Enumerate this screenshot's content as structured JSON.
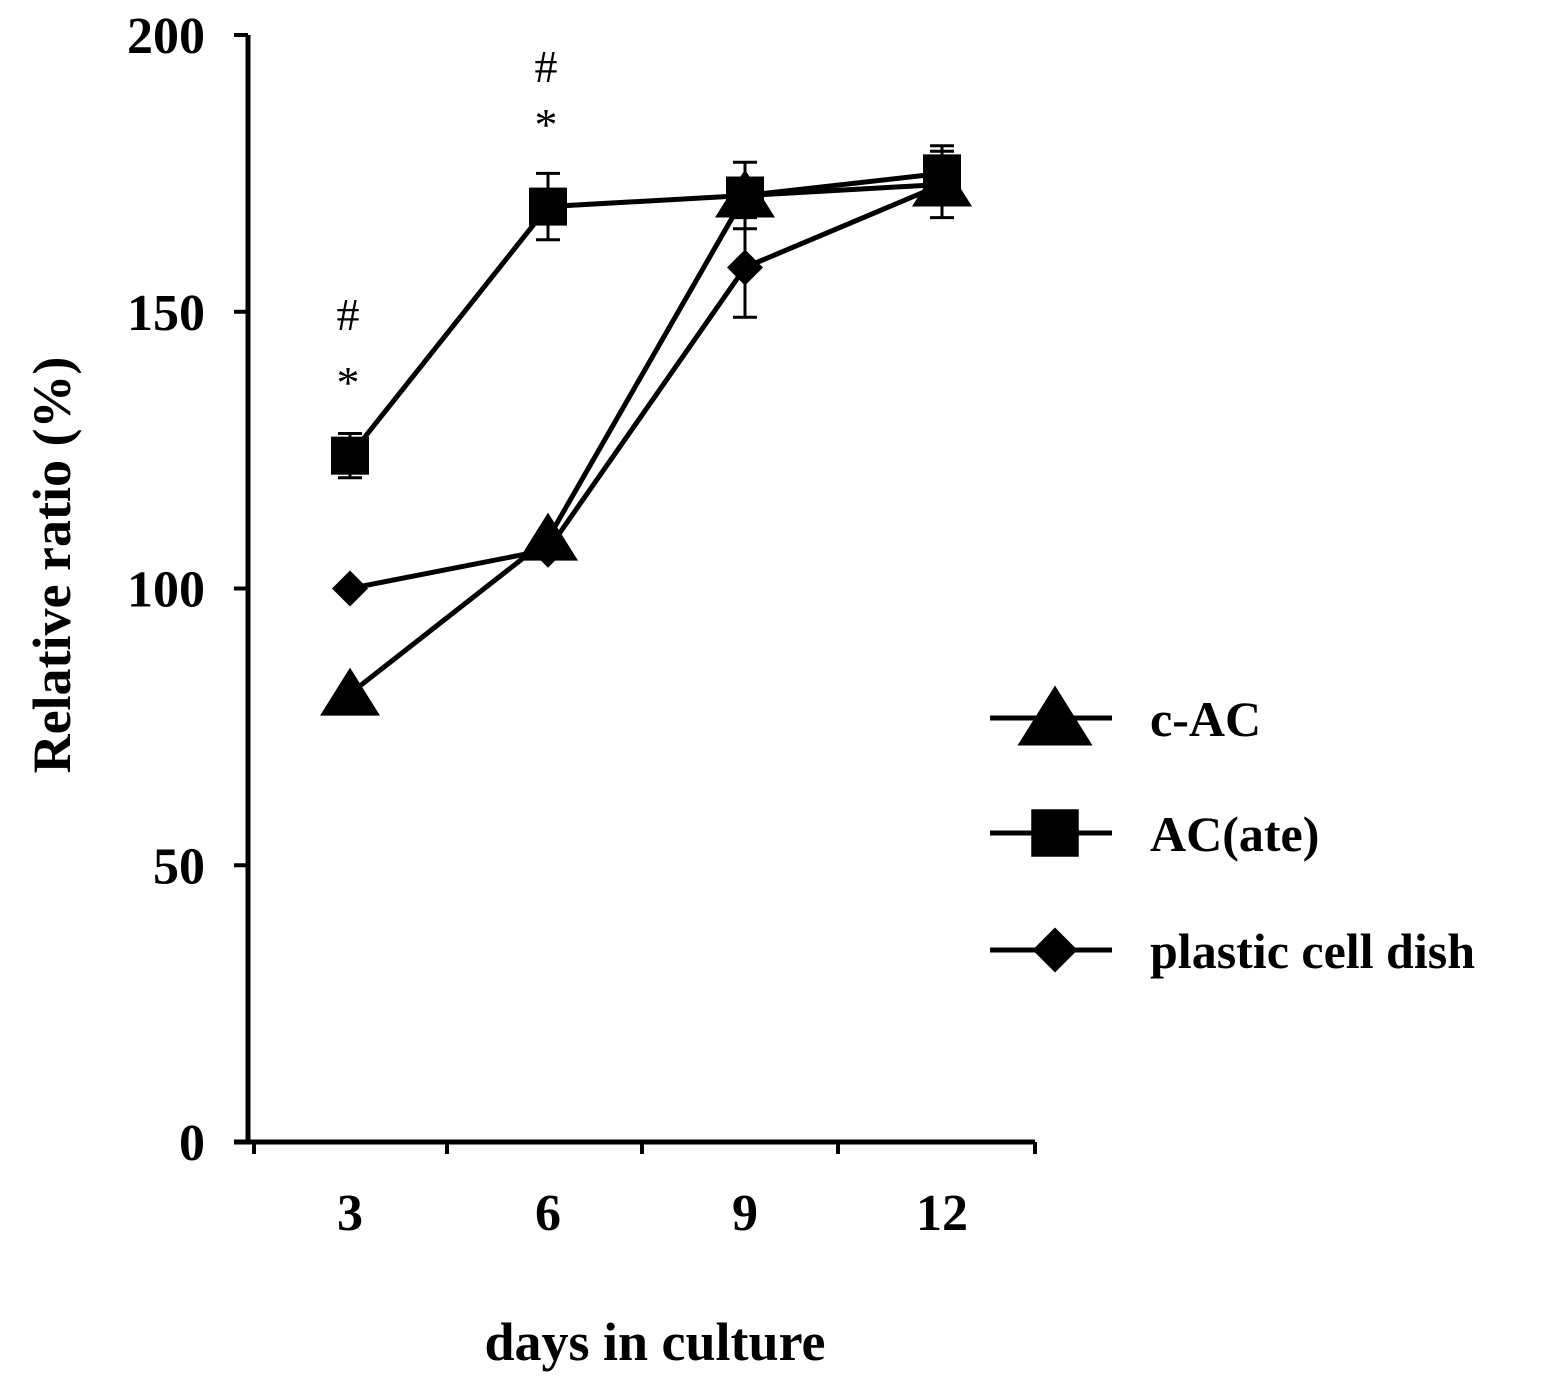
{
  "chart_data": {
    "type": "line",
    "xlabel": "days in culture",
    "ylabel": "Relative ratio (%)",
    "x": [
      3,
      6,
      9,
      12
    ],
    "x_tick_labels": [
      "3",
      "6",
      "9",
      "12"
    ],
    "ylim": [
      0,
      200
    ],
    "y_ticks": [
      0,
      50,
      100,
      150,
      200
    ],
    "y_tick_labels": [
      "0",
      "50",
      "100",
      "150",
      "200"
    ],
    "grid": false,
    "legend_placement": "right",
    "series": [
      {
        "name": "c-AC",
        "marker": "triangle",
        "color": "#000000",
        "values": [
          81,
          109,
          171,
          173
        ],
        "errors": [
          0,
          0,
          0,
          6
        ]
      },
      {
        "name": "AC(ate)",
        "marker": "square",
        "color": "#000000",
        "values": [
          124,
          169,
          171,
          175
        ],
        "errors": [
          4,
          6,
          6,
          5
        ]
      },
      {
        "name": "plastic cell dish",
        "marker": "diamond",
        "color": "#000000",
        "values": [
          100,
          107,
          158,
          173
        ],
        "errors": [
          0,
          0,
          9,
          0
        ]
      }
    ],
    "annotations": [
      {
        "x": 3,
        "symbols": [
          "#",
          "*"
        ]
      },
      {
        "x": 6,
        "symbols": [
          "#",
          "*"
        ]
      }
    ]
  }
}
